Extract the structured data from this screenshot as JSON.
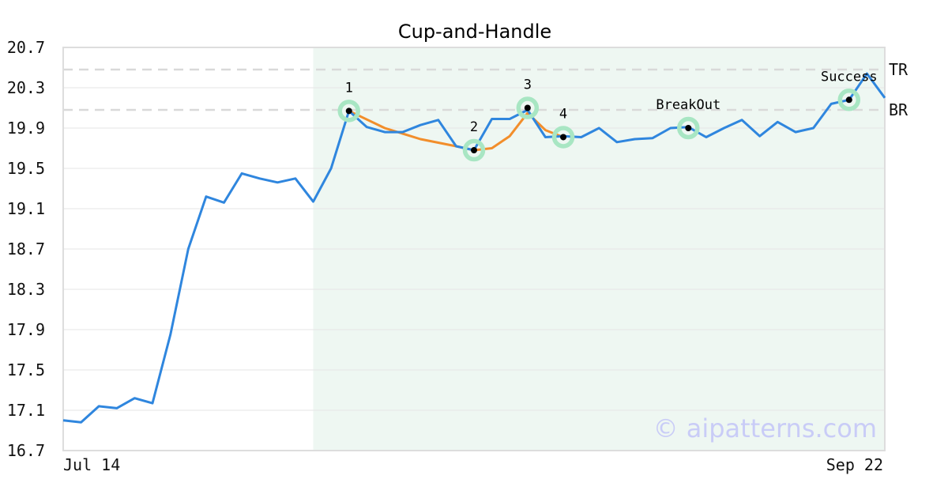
{
  "chart_data": {
    "type": "line",
    "title": "Cup-and-Handle",
    "xlabel": "",
    "ylabel": "",
    "ylim": [
      16.7,
      20.7
    ],
    "yticks": [
      16.7,
      17.1,
      17.5,
      17.9,
      18.3,
      18.7,
      19.1,
      19.5,
      19.9,
      20.3,
      20.7
    ],
    "xtick_labels": [
      "Jul 14",
      "Sep 22"
    ],
    "grid": "horizontal",
    "series": [
      {
        "values": [
          17.0,
          16.98,
          17.14,
          17.12,
          17.22,
          17.17,
          17.85,
          18.7,
          19.22,
          19.16,
          19.45,
          19.4,
          19.36,
          19.4,
          19.17,
          19.5,
          20.07,
          19.91,
          19.86,
          19.86,
          19.93,
          19.98,
          19.72,
          19.68,
          19.99,
          19.99,
          20.08,
          19.81,
          19.82,
          19.81,
          19.9,
          19.76,
          19.79,
          19.8,
          19.9,
          19.91,
          19.81,
          19.9,
          19.98,
          19.82,
          19.96,
          19.86,
          19.9,
          20.14,
          20.18,
          20.44,
          20.2
        ]
      }
    ],
    "pattern_line": {
      "color": "#f28e2b",
      "points": [
        [
          16,
          20.07
        ],
        [
          18,
          19.9
        ],
        [
          20,
          19.79
        ],
        [
          22,
          19.72
        ],
        [
          23,
          19.68
        ],
        [
          24,
          19.7
        ],
        [
          25,
          19.82
        ],
        [
          26,
          20.05
        ],
        [
          27,
          19.88
        ],
        [
          28,
          19.81
        ]
      ]
    },
    "pattern_region": {
      "from_index": 14,
      "to_index": 46,
      "color": "#eef7f2"
    },
    "markers": [
      {
        "label": "1",
        "index": 16,
        "value": 20.07
      },
      {
        "label": "2",
        "index": 23,
        "value": 19.68
      },
      {
        "label": "3",
        "index": 26,
        "value": 20.1
      },
      {
        "label": "4",
        "index": 28,
        "value": 19.81
      },
      {
        "label": "BreakOut",
        "index": 35,
        "value": 19.9
      },
      {
        "label": "Success",
        "index": 44,
        "value": 20.18
      }
    ],
    "levels": [
      {
        "label": "TR",
        "value": 20.48
      },
      {
        "label": "BR",
        "value": 20.08
      }
    ],
    "colors": {
      "line": "#2f86de",
      "marker_halo": "#a8e6c3",
      "level_line": "#d9d9d9",
      "grid": "#e6e6e6"
    }
  },
  "watermark": "© aipatterns.com"
}
